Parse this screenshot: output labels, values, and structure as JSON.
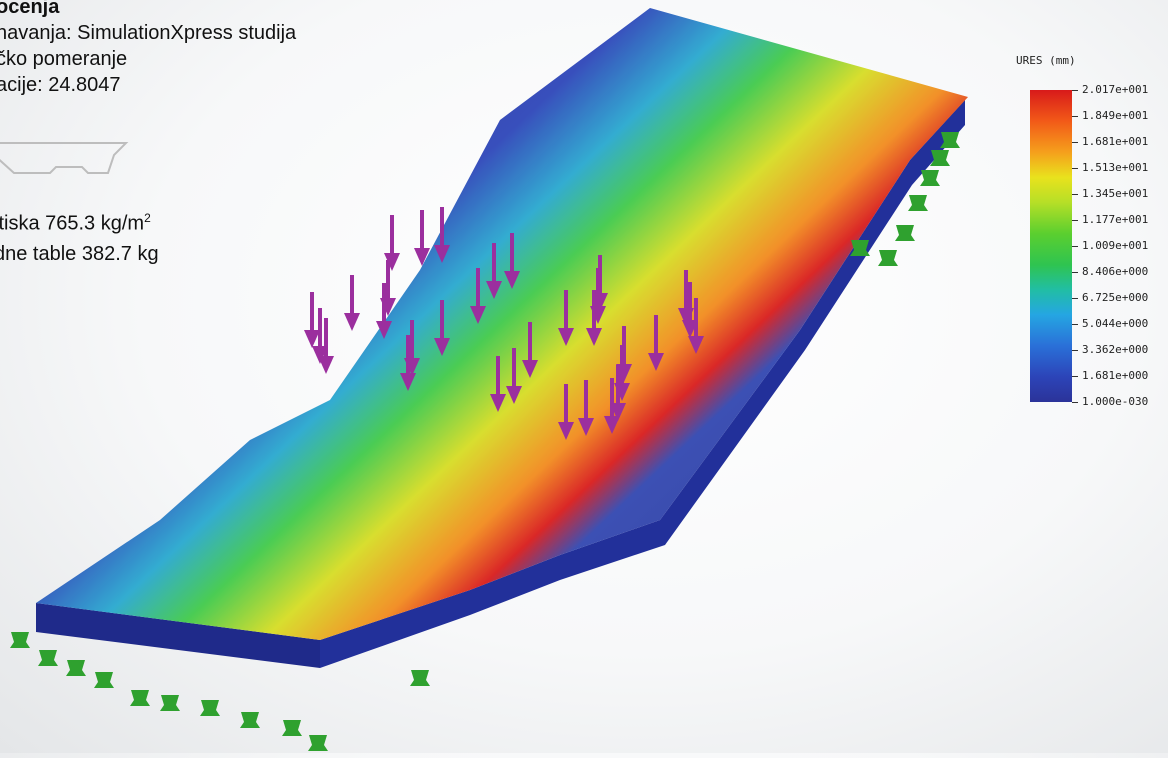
{
  "study_info": {
    "title": "ocenja",
    "study_name": "navanja: SimulationXpress studija",
    "result_type": "čko pomeranje",
    "deformation_scale": "acije: 24.8047"
  },
  "load_info": {
    "pressure_prefix": "itiska 765.3 kg/m",
    "pressure_exponent": "2",
    "mass": "dne table 382.7 kg"
  },
  "legend": {
    "title": "URES (mm)",
    "labels": [
      "2.017e+001",
      "1.849e+001",
      "1.681e+001",
      "1.513e+001",
      "1.345e+001",
      "1.177e+001",
      "1.009e+001",
      "8.406e+000",
      "6.725e+000",
      "5.044e+000",
      "3.362e+000",
      "1.681e+000",
      "1.000e-030"
    ]
  },
  "colors": {
    "max_red": "#d81a1a",
    "min_blue": "#2b3399",
    "load_arrow": "#9b2f9e",
    "fixture": "#2fa12f"
  },
  "icons": {
    "load": "purple-downward-arrow-icon",
    "fixture": "green-fixture-icon"
  }
}
